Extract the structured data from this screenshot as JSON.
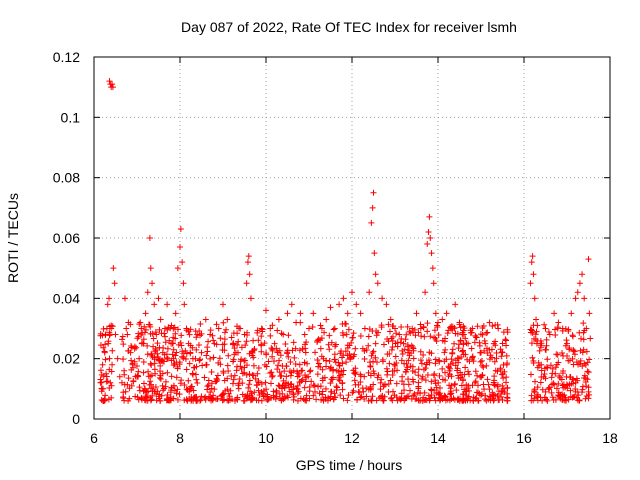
{
  "chart_data": {
    "type": "scatter",
    "title": "Day 087 of 2022, Rate Of TEC Index for receiver lsmh",
    "xlabel": "GPS time / hours",
    "ylabel": "ROTI / TECUs",
    "xlim": [
      6,
      18
    ],
    "ylim": [
      0,
      0.12
    ],
    "xticks": [
      6,
      8,
      10,
      12,
      14,
      16,
      18
    ],
    "xtick_labels": [
      "6",
      "8",
      "10",
      "12",
      "14",
      "16",
      "18"
    ],
    "yticks": [
      0,
      0.02,
      0.04,
      0.06,
      0.08,
      0.1,
      0.12
    ],
    "ytick_labels": [
      "0",
      "0.02",
      "0.04",
      "0.06",
      "0.08",
      "0.1",
      "0.12"
    ],
    "grid": true,
    "marker": "+",
    "series": [
      {
        "name": "ROTI",
        "color": "#ff0000",
        "points": [
          [
            6.15,
            0.012
          ],
          [
            6.18,
            0.01
          ],
          [
            6.2,
            0.018
          ],
          [
            6.22,
            0.006
          ],
          [
            6.25,
            0.022
          ],
          [
            6.27,
            0.028
          ],
          [
            6.28,
            0.015
          ],
          [
            6.3,
            0.03
          ],
          [
            6.32,
            0.038
          ],
          [
            6.33,
            0.025
          ],
          [
            6.35,
            0.04
          ],
          [
            6.36,
            0.02
          ],
          [
            6.38,
            0.012
          ],
          [
            6.4,
            0.03
          ],
          [
            6.42,
            0.018
          ],
          [
            6.36,
            0.112
          ],
          [
            6.38,
            0.111
          ],
          [
            6.4,
            0.11
          ],
          [
            6.42,
            0.111
          ],
          [
            6.44,
            0.11
          ],
          [
            6.45,
            0.05
          ],
          [
            6.48,
            0.045
          ],
          [
            6.5,
            0.028
          ],
          [
            6.55,
            0.02
          ],
          [
            6.6,
            0.014
          ],
          [
            6.65,
            0.012
          ],
          [
            6.7,
            0.016
          ],
          [
            6.72,
            0.04
          ],
          [
            6.75,
            0.03
          ],
          [
            6.8,
            0.032
          ],
          [
            6.85,
            0.022
          ],
          [
            6.9,
            0.018
          ],
          [
            6.95,
            0.024
          ],
          [
            7.0,
            0.014
          ],
          [
            7.05,
            0.02
          ],
          [
            7.1,
            0.03
          ],
          [
            7.15,
            0.025
          ],
          [
            7.2,
            0.035
          ],
          [
            7.25,
            0.042
          ],
          [
            7.3,
            0.06
          ],
          [
            7.32,
            0.05
          ],
          [
            7.35,
            0.045
          ],
          [
            7.4,
            0.038
          ],
          [
            7.45,
            0.028
          ],
          [
            7.5,
            0.04
          ],
          [
            7.55,
            0.033
          ],
          [
            7.6,
            0.022
          ],
          [
            7.65,
            0.03
          ],
          [
            7.7,
            0.038
          ],
          [
            7.75,
            0.026
          ],
          [
            7.8,
            0.031
          ],
          [
            7.85,
            0.02
          ],
          [
            7.9,
            0.035
          ],
          [
            7.95,
            0.05
          ],
          [
            8.0,
            0.057
          ],
          [
            8.02,
            0.063
          ],
          [
            8.05,
            0.052
          ],
          [
            8.08,
            0.045
          ],
          [
            8.1,
            0.038
          ],
          [
            8.15,
            0.03
          ],
          [
            8.2,
            0.025
          ],
          [
            8.3,
            0.02
          ],
          [
            8.4,
            0.028
          ],
          [
            8.5,
            0.022
          ],
          [
            8.6,
            0.033
          ],
          [
            8.7,
            0.028
          ],
          [
            8.8,
            0.025
          ],
          [
            8.9,
            0.03
          ],
          [
            9.0,
            0.038
          ],
          [
            9.1,
            0.033
          ],
          [
            9.2,
            0.027
          ],
          [
            9.3,
            0.022
          ],
          [
            9.4,
            0.03
          ],
          [
            9.5,
            0.028
          ],
          [
            9.55,
            0.045
          ],
          [
            9.58,
            0.052
          ],
          [
            9.6,
            0.054
          ],
          [
            9.62,
            0.048
          ],
          [
            9.65,
            0.04
          ],
          [
            9.7,
            0.026
          ],
          [
            9.8,
            0.015
          ],
          [
            9.9,
            0.03
          ],
          [
            10.0,
            0.036
          ],
          [
            10.1,
            0.03
          ],
          [
            10.2,
            0.025
          ],
          [
            10.3,
            0.033
          ],
          [
            10.4,
            0.028
          ],
          [
            10.5,
            0.035
          ],
          [
            10.6,
            0.038
          ],
          [
            10.7,
            0.032
          ],
          [
            10.8,
            0.035
          ],
          [
            10.9,
            0.028
          ],
          [
            11.0,
            0.03
          ],
          [
            11.1,
            0.035
          ],
          [
            11.2,
            0.026
          ],
          [
            11.3,
            0.03
          ],
          [
            11.4,
            0.033
          ],
          [
            11.5,
            0.037
          ],
          [
            11.6,
            0.03
          ],
          [
            11.7,
            0.038
          ],
          [
            11.8,
            0.04
          ],
          [
            11.9,
            0.035
          ],
          [
            12.0,
            0.042
          ],
          [
            12.1,
            0.038
          ],
          [
            12.2,
            0.035
          ],
          [
            12.3,
            0.03
          ],
          [
            12.4,
            0.042
          ],
          [
            12.45,
            0.065
          ],
          [
            12.48,
            0.07
          ],
          [
            12.5,
            0.075
          ],
          [
            12.52,
            0.055
          ],
          [
            12.55,
            0.048
          ],
          [
            12.6,
            0.045
          ],
          [
            12.7,
            0.04
          ],
          [
            12.8,
            0.038
          ],
          [
            12.9,
            0.033
          ],
          [
            13.0,
            0.03
          ],
          [
            13.1,
            0.028
          ],
          [
            13.2,
            0.025
          ],
          [
            13.3,
            0.022
          ],
          [
            13.4,
            0.03
          ],
          [
            13.5,
            0.035
          ],
          [
            13.6,
            0.03
          ],
          [
            13.7,
            0.042
          ],
          [
            13.75,
            0.058
          ],
          [
            13.78,
            0.062
          ],
          [
            13.8,
            0.067
          ],
          [
            13.82,
            0.06
          ],
          [
            13.85,
            0.055
          ],
          [
            13.88,
            0.05
          ],
          [
            13.9,
            0.045
          ],
          [
            13.95,
            0.035
          ],
          [
            14.0,
            0.032
          ],
          [
            14.1,
            0.033
          ],
          [
            14.2,
            0.035
          ],
          [
            14.3,
            0.03
          ],
          [
            14.4,
            0.038
          ],
          [
            14.5,
            0.032
          ],
          [
            14.6,
            0.028
          ],
          [
            14.7,
            0.025
          ],
          [
            14.8,
            0.03
          ],
          [
            14.9,
            0.027
          ],
          [
            15.0,
            0.022
          ],
          [
            15.1,
            0.025
          ],
          [
            15.2,
            0.032
          ],
          [
            15.3,
            0.025
          ],
          [
            15.4,
            0.03
          ],
          [
            15.5,
            0.022
          ],
          [
            15.6,
            0.018
          ],
          [
            16.15,
            0.045
          ],
          [
            16.18,
            0.052
          ],
          [
            16.2,
            0.054
          ],
          [
            16.22,
            0.048
          ],
          [
            16.25,
            0.04
          ],
          [
            16.28,
            0.033
          ],
          [
            16.3,
            0.025
          ],
          [
            16.4,
            0.018
          ],
          [
            16.5,
            0.03
          ],
          [
            16.6,
            0.028
          ],
          [
            16.7,
            0.035
          ],
          [
            16.8,
            0.032
          ],
          [
            16.9,
            0.03
          ],
          [
            17.0,
            0.025
          ],
          [
            17.1,
            0.035
          ],
          [
            17.2,
            0.04
          ],
          [
            17.25,
            0.042
          ],
          [
            17.3,
            0.045
          ],
          [
            17.35,
            0.048
          ],
          [
            17.4,
            0.04
          ],
          [
            17.45,
            0.03
          ],
          [
            17.5,
            0.053
          ],
          [
            17.52,
            0.035
          ]
        ]
      }
    ],
    "dense_band": {
      "description_free": true,
      "segments": [
        {
          "x": [
            6.15,
            6.45
          ],
          "y": [
            0.004,
            0.03
          ]
        },
        {
          "x": [
            6.65,
            15.62
          ],
          "y": [
            0.004,
            0.03
          ]
        },
        {
          "x": [
            16.12,
            17.55
          ],
          "y": [
            0.004,
            0.03
          ]
        }
      ],
      "count": 1500,
      "seed": 87
    }
  }
}
